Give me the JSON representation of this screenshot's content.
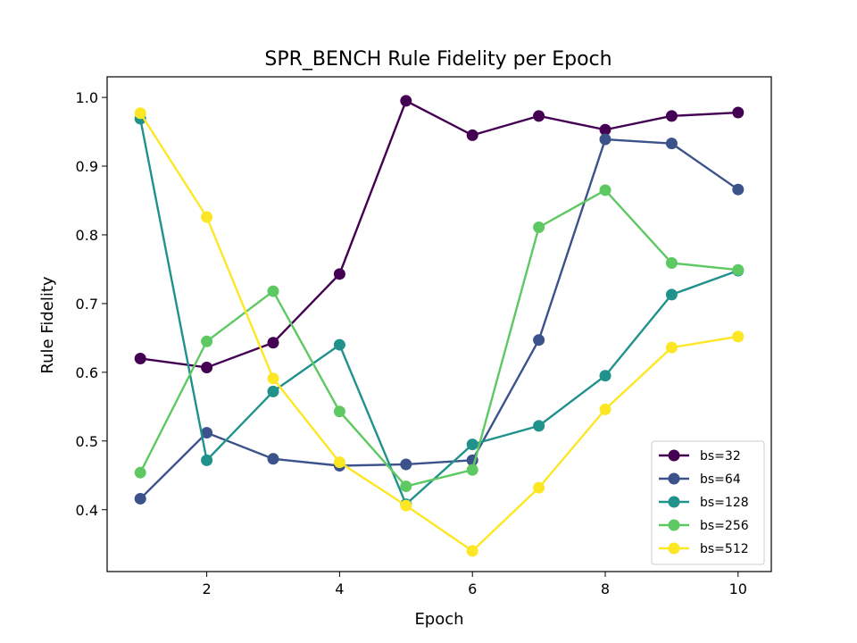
{
  "chart_data": {
    "type": "line",
    "title": "SPR_BENCH Rule Fidelity per Epoch",
    "xlabel": "Epoch",
    "ylabel": "Rule Fidelity",
    "xlim": [
      0.5,
      10.5
    ],
    "ylim": [
      0.31,
      1.03
    ],
    "xticks": [
      2,
      4,
      6,
      8,
      10
    ],
    "yticks": [
      0.4,
      0.5,
      0.6,
      0.7,
      0.8,
      0.9,
      1.0
    ],
    "ytick_labels": [
      "0.4",
      "0.5",
      "0.6",
      "0.7",
      "0.8",
      "0.9",
      "1.0"
    ],
    "grid": false,
    "legend_position": "lower-right",
    "x": [
      1,
      2,
      3,
      4,
      5,
      6,
      7,
      8,
      9,
      10
    ],
    "series": [
      {
        "name": "bs=32",
        "color": "#440154",
        "values": [
          0.62,
          0.607,
          0.643,
          0.743,
          0.995,
          0.945,
          0.973,
          0.953,
          0.973,
          0.978
        ]
      },
      {
        "name": "bs=64",
        "color": "#3b528b",
        "values": [
          0.416,
          0.512,
          0.474,
          0.464,
          0.466,
          0.472,
          0.647,
          0.939,
          0.933,
          0.866
        ]
      },
      {
        "name": "bs=128",
        "color": "#21918c",
        "values": [
          0.969,
          0.472,
          0.572,
          0.64,
          0.408,
          0.495,
          0.522,
          0.595,
          0.713,
          0.748
        ]
      },
      {
        "name": "bs=256",
        "color": "#5ec962",
        "values": [
          0.454,
          0.645,
          0.718,
          0.543,
          0.434,
          0.458,
          0.811,
          0.865,
          0.759,
          0.749
        ]
      },
      {
        "name": "bs=512",
        "color": "#fde725",
        "values": [
          0.977,
          0.826,
          0.591,
          0.469,
          0.406,
          0.34,
          0.432,
          0.546,
          0.636,
          0.652
        ]
      }
    ]
  }
}
